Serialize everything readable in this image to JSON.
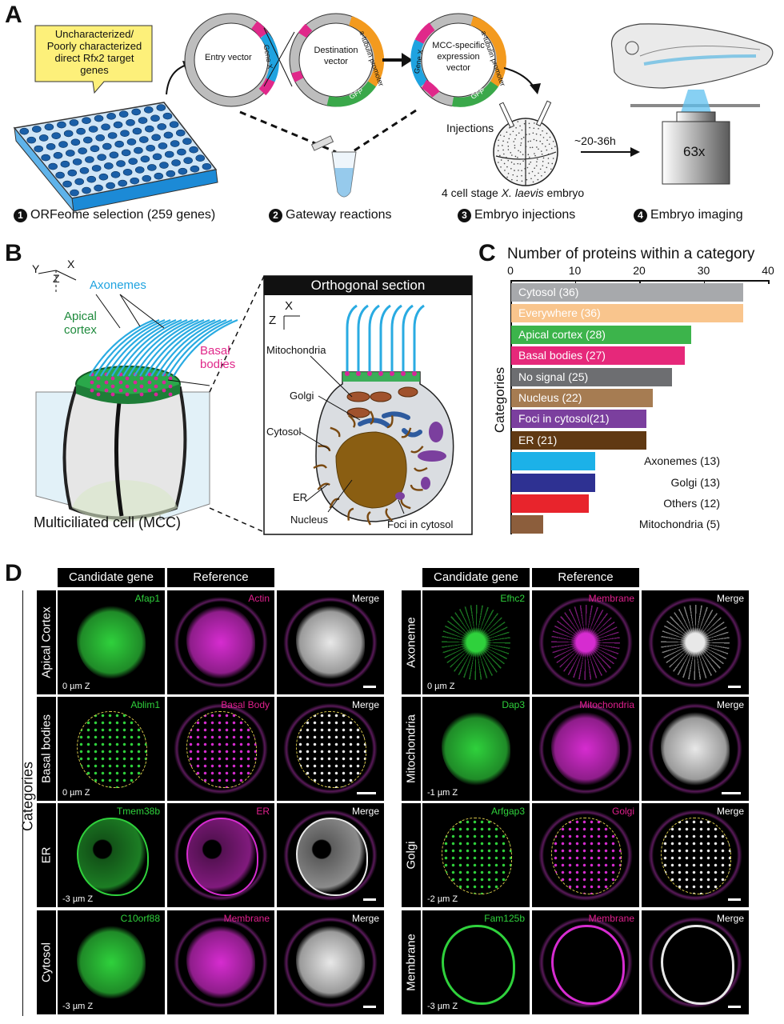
{
  "panel_A": {
    "letter": "A",
    "callout": "Uncharacterized/ Poorly characterized direct Rfx2 target genes",
    "entry_vector": "Entry vector",
    "destination_vector": "Destination vector",
    "expression_vector": "MCC-specific expression vector",
    "gene_x": "Gene X",
    "tubulin_promoter": "a-tubulin promoter",
    "gfp": "GFP",
    "injections": "Injections",
    "embryo_caption_pre": "4 cell stage ",
    "embryo_caption_italic": "X. laevis",
    "embryo_caption_post": " embryo",
    "time": "~20-36h",
    "objective": "63x",
    "steps": [
      {
        "num": "1",
        "label": "ORFeome selection  (259 genes)"
      },
      {
        "num": "2",
        "label": "Gateway reactions"
      },
      {
        "num": "3",
        "label": "Embryo injections"
      },
      {
        "num": "4",
        "label": "Embryo imaging"
      }
    ]
  },
  "panel_B": {
    "letter": "B",
    "axes": {
      "x": "X",
      "y": "Y",
      "z": "Z"
    },
    "axonemes": "Axonemes",
    "apical_cortex": "Apical cortex",
    "basal_bodies": "Basal bodies",
    "cell_caption": "Multiciliated cell (MCC)",
    "orth_title": "Orthogonal section",
    "labels": {
      "mitochondria": "Mitochondria",
      "golgi": "Golgi",
      "cytosol": "Cytosol",
      "er": "ER",
      "nucleus": "Nucleus",
      "foci": "Foci in cytosol"
    }
  },
  "panel_C": {
    "letter": "C",
    "ylabel": "Categories",
    "chart_data": {
      "type": "bar",
      "orientation": "horizontal",
      "title": "Number of proteins within a category",
      "ylabel": "Categories",
      "xlim": [
        0,
        40
      ],
      "xticks": [
        "0",
        "10",
        "20",
        "30",
        "40"
      ],
      "categories": [
        "Cytosol (36)",
        "Everywhere (36)",
        "Apical cortex (28)",
        "Basal bodies (27)",
        "No signal (25)",
        "Nucleus (22)",
        "Foci in cytosol(21)",
        "ER (21)",
        "Axonemes (13)",
        "Golgi (13)",
        "Others (12)",
        "Mitochondria (5)"
      ],
      "values": [
        36,
        36,
        28,
        27,
        25,
        22,
        21,
        21,
        13,
        13,
        12,
        5
      ],
      "colors": [
        "#a7a9ac",
        "#f9c58d",
        "#3cb44b",
        "#e6287a",
        "#6d6e71",
        "#a67c52",
        "#7b3f9e",
        "#603913",
        "#1cb1e8",
        "#2e3192",
        "#e8242c",
        "#8c5e3c"
      ],
      "label_inside": [
        true,
        true,
        true,
        true,
        true,
        true,
        true,
        true,
        false,
        false,
        false,
        false
      ]
    }
  },
  "panel_D": {
    "letter": "D",
    "side_label": "Categories",
    "header_candidate": "Candidate gene",
    "header_reference": "Reference",
    "merge": "Merge",
    "left_rows": [
      {
        "category": "Apical Cortex",
        "gene": "Afap1",
        "reference": "Actin",
        "z": "0 µm Z"
      },
      {
        "category": "Basal bodies",
        "gene": "Ablim1",
        "reference": "Basal Body",
        "z": "0 µm Z"
      },
      {
        "category": "ER",
        "gene": "Tmem38b",
        "reference": "ER",
        "z": "-3 µm Z"
      },
      {
        "category": "Cytosol",
        "gene": "C10orf88",
        "reference": "Membrane",
        "z": "-3 µm Z"
      }
    ],
    "right_rows": [
      {
        "category": "Axoneme",
        "gene": "Efhc2",
        "reference": "Membrane",
        "z": "0 µm Z"
      },
      {
        "category": "Mitochondria",
        "gene": "Dap3",
        "reference": "Mitochondria",
        "z": "-1 µm Z"
      },
      {
        "category": "Golgi",
        "gene": "Arfgap3",
        "reference": "Golgi",
        "z": "-2 µm Z"
      },
      {
        "category": "Membrane",
        "gene": "Fam125b",
        "reference": "Membrane",
        "z": "-3 µm Z"
      }
    ]
  }
}
